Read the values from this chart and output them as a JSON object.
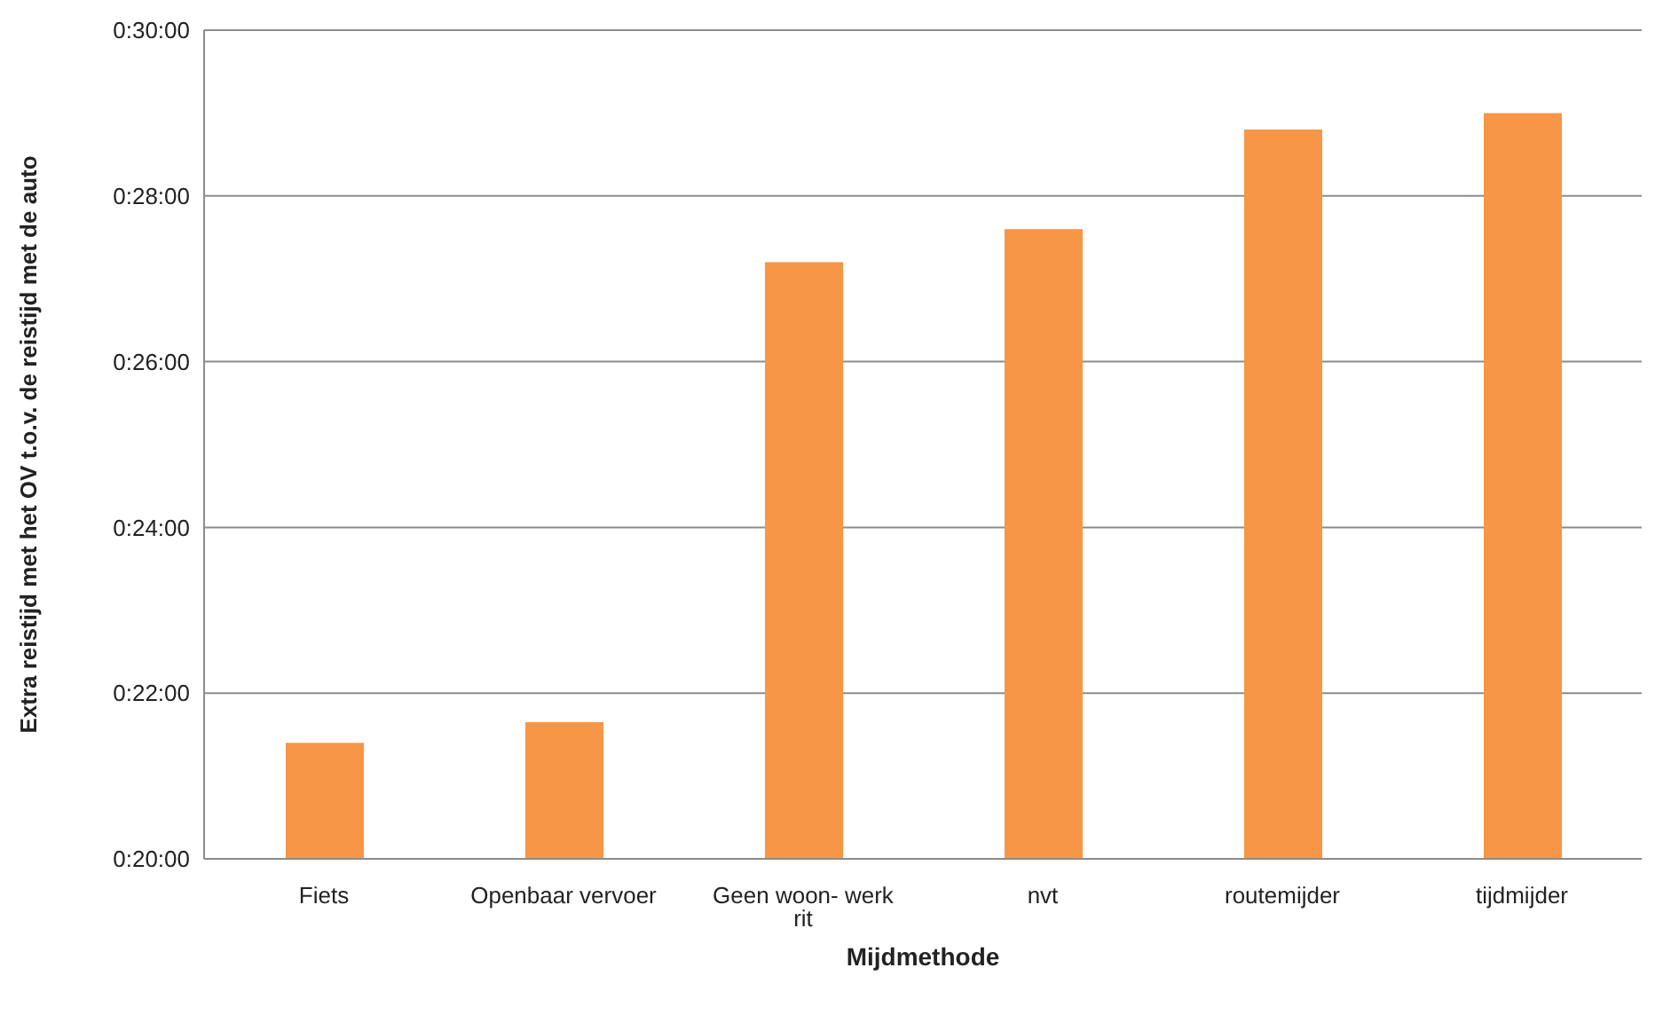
{
  "chart_data": {
    "type": "bar",
    "xlabel": "Mijdmethode",
    "ylabel": "Extra reistijd met het OV t.o.v. de reistijd met de auto",
    "categories": [
      "Fiets",
      "Openbaar vervoer",
      "Geen woon- werk rit",
      "nvt",
      "routemijder",
      "tijdmijder"
    ],
    "values": [
      21.4,
      21.65,
      27.2,
      27.6,
      28.8,
      29.0
    ],
    "color": "#f79646",
    "ylim": [
      20,
      30
    ],
    "yticks": [
      {
        "value": 20,
        "label": "0:20:00"
      },
      {
        "value": 22,
        "label": "0:22:00"
      },
      {
        "value": 24,
        "label": "0:24:00"
      },
      {
        "value": 26,
        "label": "0:26:00"
      },
      {
        "value": 28,
        "label": "0:28:00"
      },
      {
        "value": 30,
        "label": "0:30:00"
      }
    ],
    "grid": "y",
    "legend": false
  }
}
